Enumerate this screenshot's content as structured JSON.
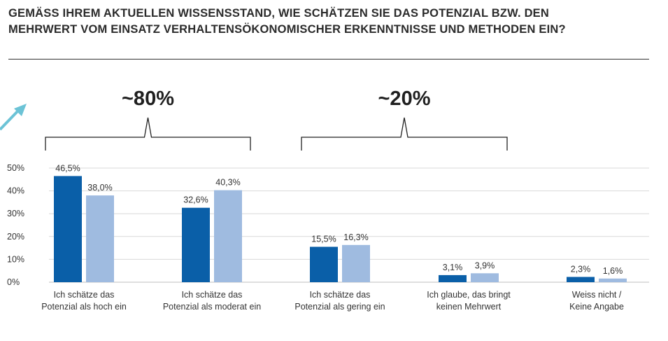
{
  "title": {
    "line1": "GEMÄSS IHREM AKTUELLEN WISSENSSTAND, WIE SCHÄTZEN SIE DAS POTENZIAL BZW. DEN",
    "line2": "MEHRWERT VOM EINSATZ VERHALTENSÖKONOMISCHER ERKENNTNISSE UND METHODEN EIN?"
  },
  "brackets": [
    {
      "label": "~80%",
      "from_category": 0,
      "to_category": 1
    },
    {
      "label": "~20%",
      "from_category": 2,
      "to_category": 3
    }
  ],
  "colors": {
    "series_dark": "#0a5fa8",
    "series_light": "#9fbbe0",
    "arrow": "#6cc3d6",
    "grid": "#d9d9d9",
    "text": "#333333"
  },
  "chart_data": {
    "type": "bar",
    "title": "GEMÄSS IHREM AKTUELLEN WISSENSSTAND, WIE SCHÄTZEN SIE DAS POTENZIAL BZW. DEN MEHRWERT VOM EINSATZ VERHALTENSÖKONOMISCHER ERKENNTNISSE UND METHODEN EIN?",
    "categories": [
      [
        "Ich schätze das",
        "Potenzial als hoch ein"
      ],
      [
        "Ich schätze das",
        "Potenzial als moderat ein"
      ],
      [
        "Ich schätze das",
        "Potenzial als gering ein"
      ],
      [
        "Ich glaube, das bringt",
        "keinen Mehrwert"
      ],
      [
        "Weiss nicht /",
        "Keine Angabe"
      ]
    ],
    "series": [
      {
        "values": [
          46.5,
          32.6,
          15.5,
          3.1,
          2.3
        ],
        "labels": [
          "46,5%",
          "32,6%",
          "15,5%",
          "3,1%",
          "2,3%"
        ]
      },
      {
        "values": [
          38.0,
          40.3,
          16.3,
          3.9,
          1.6
        ],
        "labels": [
          "38,0%",
          "40,3%",
          "16,3%",
          "3,9%",
          "1,6%"
        ]
      }
    ],
    "yticks": [
      "0%",
      "10%",
      "20%",
      "30%",
      "40%",
      "50%"
    ],
    "ylim": [
      0,
      50
    ],
    "grid": true,
    "legend": "none"
  }
}
